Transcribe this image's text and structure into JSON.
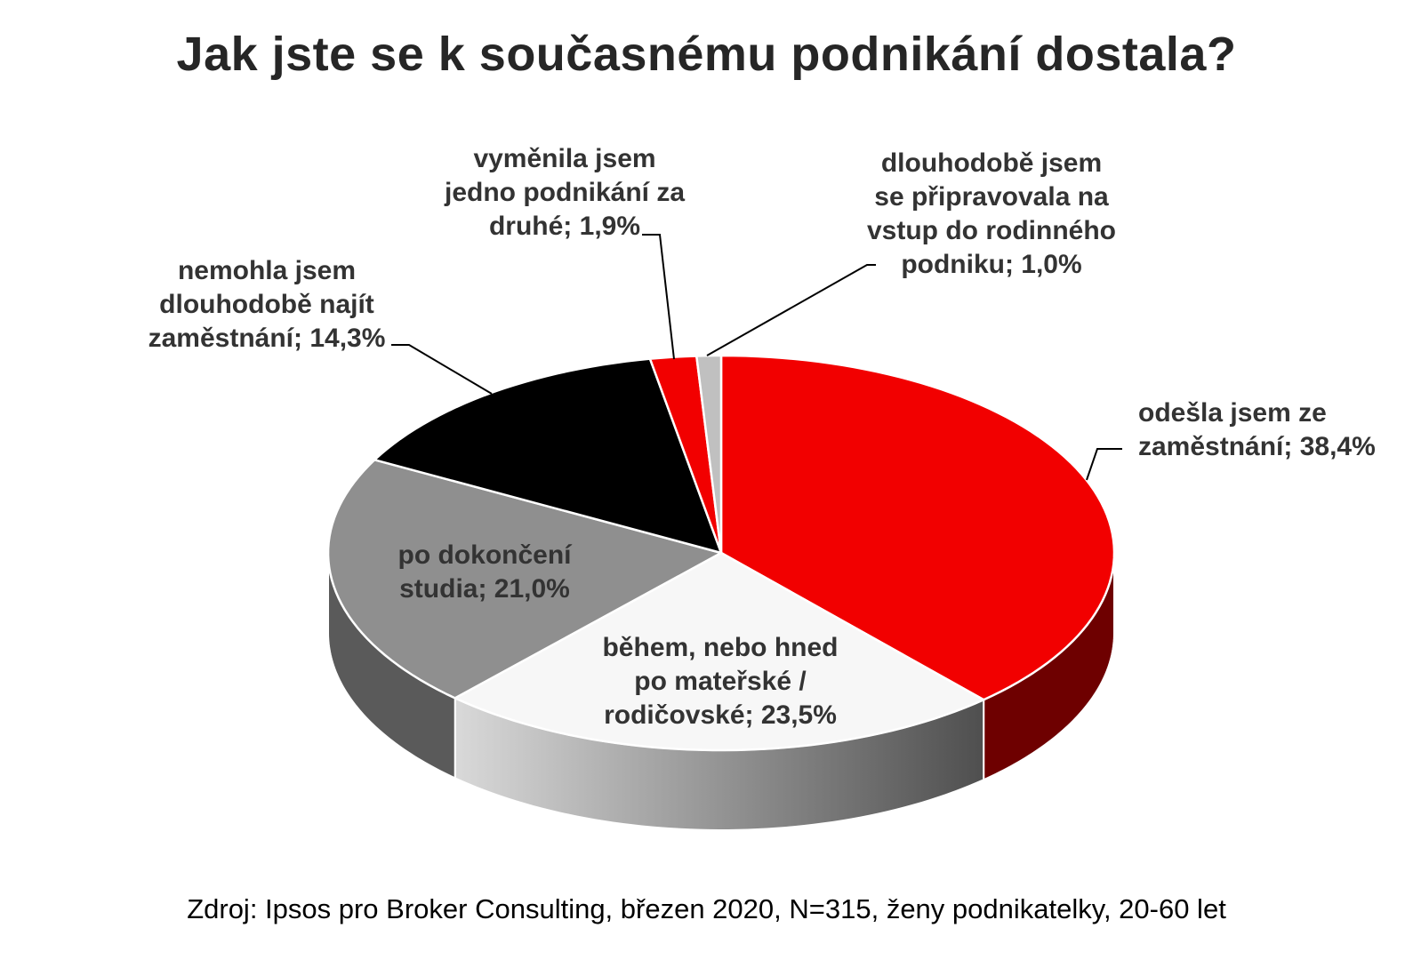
{
  "chart_data": {
    "type": "pie",
    "title": "Jak jste se k současnému podnikání dostala?",
    "source": "Zdroj: Ipsos pro Broker Consulting, březen 2020, N=315, ženy podnikatelky, 20-60 let",
    "slices": [
      {
        "label": "odešla jsem ze\nzaměstnání; 38,4%",
        "value": 38.4,
        "color": "#f20000",
        "side_color": "#6e0000"
      },
      {
        "label": "během, nebo hned\npo mateřské /\nrodičovské; 23,5%",
        "value": 23.5,
        "color": "#f7f7f7",
        "side_color": "#8c8c8c"
      },
      {
        "label": "po dokončení\nstudia; 21,0%",
        "value": 21.0,
        "color": "#8f8f8f",
        "side_color": "#5a5a5a"
      },
      {
        "label": "nemohla jsem\ndlouhodobě najít\nzaměstnání; 14,3%",
        "value": 14.3,
        "color": "#000000",
        "side_color": "#000000"
      },
      {
        "label": "vyměnila jsem\njedno podnikání za\ndruhé; 1,9%",
        "value": 1.9,
        "color": "#f20000",
        "side_color": "#6e0000"
      },
      {
        "label": "dlouhodobě jsem\nse připravovala na\nvstup do rodinného\npodniku; 1,0%",
        "value": 1.0,
        "color": "#c0c0c0",
        "side_color": "#7a7a7a"
      }
    ],
    "start_angle": "12 o'clock",
    "direction": "clockwise",
    "style": "3D pie",
    "legend": "none"
  }
}
